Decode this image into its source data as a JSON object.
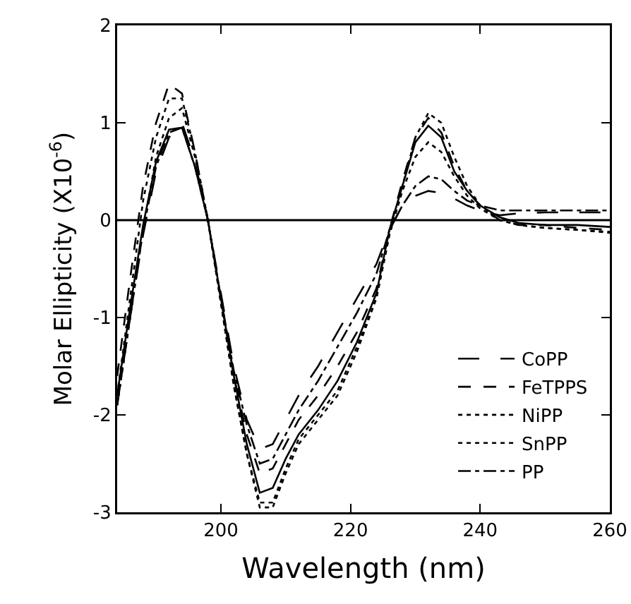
{
  "chart_data": {
    "type": "line",
    "xlabel": "Wavelength (nm)",
    "ylabel": "Molar Ellipticity (X10$^{-6}$)",
    "x": [
      184,
      186,
      188,
      190,
      192,
      194,
      196,
      198,
      200,
      202,
      204,
      206,
      208,
      210,
      212,
      215,
      218,
      221,
      224,
      226,
      228,
      230,
      232,
      234,
      236,
      238,
      240,
      243,
      246,
      250,
      255,
      260
    ],
    "xlim": [
      184,
      260
    ],
    "ylim": [
      -3,
      2
    ],
    "xticks": [
      200,
      220,
      240,
      260
    ],
    "yticks": [
      -3,
      -2,
      -1,
      0,
      1,
      2
    ],
    "grid": false,
    "legend": "bottom right",
    "marker": "none",
    "ref_lines": [
      {
        "axis": "y",
        "value": 0,
        "color": "#000000",
        "line_style": "solid"
      }
    ],
    "series": [
      {
        "color": "#000000",
        "line_style": "solid",
        "values": [
          -1.8,
          -0.9,
          -0.05,
          0.6,
          0.93,
          0.95,
          0.55,
          0.0,
          -0.8,
          -1.6,
          -2.3,
          -2.8,
          -2.75,
          -2.45,
          -2.2,
          -1.95,
          -1.65,
          -1.25,
          -0.75,
          -0.1,
          0.35,
          0.8,
          0.97,
          0.85,
          0.5,
          0.3,
          0.15,
          0.03,
          -0.03,
          -0.05,
          -0.05,
          -0.07
        ]
      },
      {
        "name": "CoPP",
        "color": "#000000",
        "line_style": "longdash",
        "values": [
          -1.9,
          -1.0,
          -0.15,
          0.5,
          0.85,
          1.0,
          0.6,
          0.0,
          -0.75,
          -1.5,
          -2.05,
          -2.35,
          -2.3,
          -2.05,
          -1.8,
          -1.5,
          -1.15,
          -0.8,
          -0.45,
          -0.1,
          0.15,
          0.25,
          0.3,
          0.28,
          0.22,
          0.15,
          0.1,
          0.05,
          0.07,
          0.08,
          0.08,
          0.08
        ]
      },
      {
        "name": "FeTPPS",
        "color": "#000000",
        "line_style": "dashed",
        "values": [
          -1.6,
          -0.6,
          0.35,
          1.0,
          1.4,
          1.3,
          0.7,
          0.0,
          -0.8,
          -1.6,
          -2.2,
          -2.6,
          -2.55,
          -2.3,
          -2.05,
          -1.8,
          -1.5,
          -1.15,
          -0.7,
          -0.1,
          0.4,
          0.85,
          1.05,
          0.9,
          0.55,
          0.3,
          0.15,
          0.0,
          -0.05,
          -0.05,
          -0.08,
          -0.1
        ]
      },
      {
        "name": "NiPP",
        "color": "#000000",
        "line_style": "dotted",
        "values": [
          -1.8,
          -0.8,
          0.2,
          0.85,
          1.25,
          1.25,
          0.7,
          0.0,
          -0.85,
          -1.7,
          -2.4,
          -2.95,
          -2.95,
          -2.6,
          -2.3,
          -2.05,
          -1.8,
          -1.35,
          -0.8,
          -0.15,
          0.35,
          0.85,
          1.1,
          1.0,
          0.65,
          0.35,
          0.15,
          0.0,
          -0.05,
          -0.08,
          -0.1,
          -0.13
        ]
      },
      {
        "name": "SnPP",
        "color": "#000000",
        "line_style": "dotted",
        "values": [
          -1.9,
          -1.0,
          -0.1,
          0.65,
          1.05,
          1.15,
          0.65,
          0.0,
          -0.85,
          -1.7,
          -2.4,
          -2.9,
          -2.9,
          -2.55,
          -2.25,
          -2.0,
          -1.75,
          -1.3,
          -0.8,
          -0.15,
          0.3,
          0.65,
          0.8,
          0.7,
          0.45,
          0.25,
          0.12,
          0.0,
          -0.05,
          -0.08,
          -0.1,
          -0.12
        ]
      },
      {
        "name": "PP",
        "color": "#000000",
        "line_style": "dashdot",
        "values": [
          -1.9,
          -1.0,
          -0.1,
          0.55,
          0.9,
          0.95,
          0.55,
          0.0,
          -0.8,
          -1.55,
          -2.1,
          -2.5,
          -2.45,
          -2.2,
          -1.95,
          -1.65,
          -1.3,
          -0.95,
          -0.55,
          -0.1,
          0.15,
          0.35,
          0.45,
          0.42,
          0.3,
          0.2,
          0.15,
          0.1,
          0.1,
          0.1,
          0.1,
          0.1
        ]
      }
    ]
  }
}
